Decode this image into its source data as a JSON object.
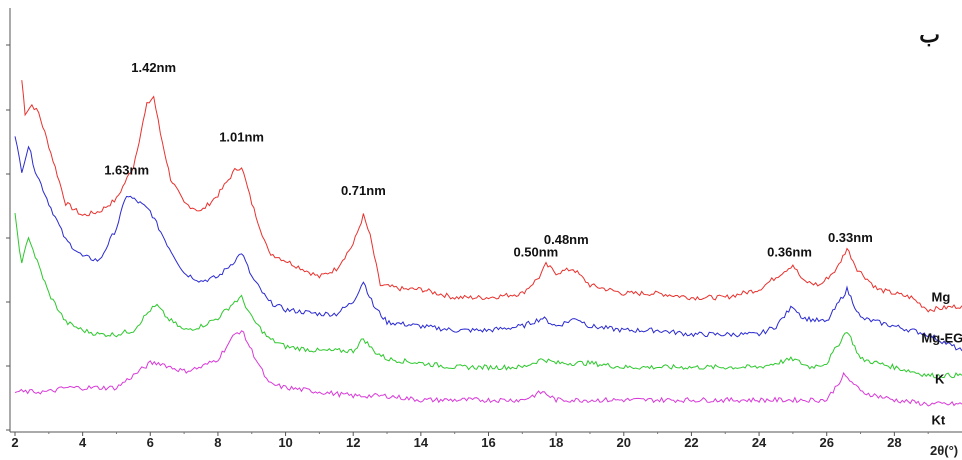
{
  "chart_data": {
    "type": "line",
    "panel_label": "ب",
    "xlabel": "2θ(°)",
    "ylabel": "",
    "xlim": [
      2,
      30
    ],
    "ylim": [
      0,
      100
    ],
    "y_ticks_labeled": false,
    "x_ticks": [
      2,
      4,
      6,
      8,
      10,
      12,
      14,
      16,
      18,
      20,
      22,
      24,
      26,
      28
    ],
    "x_tick_labels": [
      "2",
      "4",
      "6",
      "8",
      "10",
      "12",
      "14",
      "16",
      "18",
      "20",
      "22",
      "24",
      "26",
      "28"
    ],
    "grid": false,
    "legend": "inline-right",
    "series": [
      {
        "name": "Mg",
        "color": "#e8322e",
        "points": [
          [
            2.2,
            78
          ],
          [
            2.3,
            70
          ],
          [
            2.5,
            72
          ],
          [
            2.7,
            70
          ],
          [
            3.0,
            62
          ],
          [
            3.5,
            48
          ],
          [
            4.0,
            45
          ],
          [
            4.5,
            46
          ],
          [
            5.0,
            49
          ],
          [
            5.5,
            57
          ],
          [
            5.9,
            72
          ],
          [
            6.1,
            74
          ],
          [
            6.3,
            65
          ],
          [
            6.6,
            54
          ],
          [
            7.0,
            48
          ],
          [
            7.5,
            46
          ],
          [
            8.0,
            50
          ],
          [
            8.5,
            56
          ],
          [
            8.7,
            57
          ],
          [
            9.0,
            48
          ],
          [
            9.5,
            36
          ],
          [
            10.0,
            34
          ],
          [
            10.5,
            32
          ],
          [
            11.0,
            30
          ],
          [
            11.5,
            32
          ],
          [
            12.0,
            38
          ],
          [
            12.3,
            45
          ],
          [
            12.5,
            40
          ],
          [
            12.8,
            28
          ],
          [
            13.5,
            27
          ],
          [
            14.0,
            27
          ],
          [
            15.0,
            25
          ],
          [
            16.0,
            25
          ],
          [
            17.0,
            26
          ],
          [
            17.5,
            30
          ],
          [
            17.7,
            33
          ],
          [
            18.0,
            31
          ],
          [
            18.5,
            32
          ],
          [
            19.0,
            28
          ],
          [
            20.0,
            26
          ],
          [
            21.0,
            26
          ],
          [
            22.0,
            25
          ],
          [
            23.0,
            25
          ],
          [
            24.0,
            27
          ],
          [
            24.5,
            30
          ],
          [
            25.0,
            33
          ],
          [
            25.3,
            29
          ],
          [
            25.8,
            28
          ],
          [
            26.3,
            32
          ],
          [
            26.6,
            37
          ],
          [
            26.9,
            32
          ],
          [
            27.5,
            27
          ],
          [
            28.5,
            25
          ],
          [
            29.0,
            22
          ],
          [
            30.0,
            23
          ]
        ]
      },
      {
        "name": "Mg-EG",
        "color": "#2b2bd0",
        "points": [
          [
            2.0,
            64
          ],
          [
            2.2,
            56
          ],
          [
            2.4,
            62
          ],
          [
            2.6,
            56
          ],
          [
            3.0,
            48
          ],
          [
            3.5,
            39
          ],
          [
            4.0,
            35
          ],
          [
            4.5,
            34
          ],
          [
            5.0,
            42
          ],
          [
            5.3,
            50
          ],
          [
            5.7,
            48
          ],
          [
            6.0,
            46
          ],
          [
            6.5,
            38
          ],
          [
            7.0,
            31
          ],
          [
            7.5,
            29
          ],
          [
            8.0,
            30
          ],
          [
            8.5,
            34
          ],
          [
            8.7,
            36
          ],
          [
            9.0,
            30
          ],
          [
            9.5,
            24
          ],
          [
            10.0,
            22
          ],
          [
            11.0,
            21
          ],
          [
            11.5,
            21
          ],
          [
            12.0,
            24
          ],
          [
            12.3,
            29
          ],
          [
            12.6,
            23
          ],
          [
            13.0,
            19
          ],
          [
            14.0,
            18
          ],
          [
            15.0,
            17
          ],
          [
            16.0,
            17
          ],
          [
            17.0,
            18
          ],
          [
            17.6,
            20
          ],
          [
            18.0,
            18
          ],
          [
            18.6,
            20
          ],
          [
            19.0,
            18
          ],
          [
            20.0,
            17
          ],
          [
            21.0,
            17
          ],
          [
            22.0,
            16
          ],
          [
            23.0,
            16
          ],
          [
            24.0,
            16
          ],
          [
            24.5,
            18
          ],
          [
            25.0,
            23
          ],
          [
            25.3,
            20
          ],
          [
            26.0,
            19
          ],
          [
            26.6,
            27
          ],
          [
            27.0,
            20
          ],
          [
            27.5,
            19
          ],
          [
            28.0,
            18
          ],
          [
            29.0,
            16
          ],
          [
            30.0,
            12
          ]
        ]
      },
      {
        "name": "K",
        "color": "#2ec82e",
        "points": [
          [
            2.0,
            45
          ],
          [
            2.2,
            33
          ],
          [
            2.4,
            40
          ],
          [
            2.6,
            35
          ],
          [
            3.0,
            26
          ],
          [
            3.5,
            19
          ],
          [
            4.0,
            17
          ],
          [
            4.5,
            16
          ],
          [
            5.0,
            16
          ],
          [
            5.5,
            17
          ],
          [
            6.0,
            22
          ],
          [
            6.2,
            23
          ],
          [
            6.5,
            20
          ],
          [
            7.0,
            17
          ],
          [
            7.5,
            18
          ],
          [
            8.0,
            20
          ],
          [
            8.5,
            24
          ],
          [
            8.7,
            25
          ],
          [
            9.0,
            20
          ],
          [
            9.5,
            15
          ],
          [
            10.0,
            13
          ],
          [
            11.0,
            12
          ],
          [
            12.0,
            12
          ],
          [
            12.3,
            15
          ],
          [
            12.6,
            12
          ],
          [
            13.0,
            10
          ],
          [
            14.0,
            9
          ],
          [
            15.0,
            8
          ],
          [
            16.0,
            8
          ],
          [
            17.0,
            8
          ],
          [
            17.6,
            10
          ],
          [
            18.0,
            9
          ],
          [
            19.0,
            9
          ],
          [
            20.0,
            8
          ],
          [
            21.0,
            8
          ],
          [
            22.0,
            8
          ],
          [
            23.0,
            8
          ],
          [
            24.0,
            8
          ],
          [
            25.0,
            10
          ],
          [
            25.5,
            8
          ],
          [
            26.0,
            9
          ],
          [
            26.6,
            17
          ],
          [
            27.0,
            10
          ],
          [
            28.0,
            8
          ],
          [
            29.0,
            6
          ],
          [
            30.0,
            6
          ]
        ]
      },
      {
        "name": "Kt",
        "color": "#d83ad8",
        "points": [
          [
            2.0,
            2
          ],
          [
            2.5,
            2
          ],
          [
            3.0,
            2
          ],
          [
            3.5,
            3
          ],
          [
            4.0,
            3
          ],
          [
            4.5,
            3
          ],
          [
            5.0,
            3
          ],
          [
            5.5,
            6
          ],
          [
            6.0,
            9
          ],
          [
            6.3,
            9
          ],
          [
            6.6,
            8
          ],
          [
            7.0,
            7
          ],
          [
            7.5,
            8
          ],
          [
            8.0,
            10
          ],
          [
            8.5,
            16
          ],
          [
            8.7,
            17
          ],
          [
            9.0,
            12
          ],
          [
            9.5,
            4
          ],
          [
            10.0,
            3
          ],
          [
            11.0,
            2
          ],
          [
            12.0,
            1
          ],
          [
            13.0,
            1
          ],
          [
            14.0,
            0
          ],
          [
            15.0,
            0
          ],
          [
            16.0,
            0
          ],
          [
            17.0,
            0
          ],
          [
            17.6,
            2
          ],
          [
            18.0,
            0
          ],
          [
            19.0,
            0
          ],
          [
            20.0,
            0
          ],
          [
            21.0,
            0
          ],
          [
            22.0,
            0
          ],
          [
            23.0,
            0
          ],
          [
            24.0,
            0
          ],
          [
            25.0,
            0
          ],
          [
            26.0,
            0
          ],
          [
            26.5,
            6
          ],
          [
            26.8,
            4
          ],
          [
            27.0,
            2
          ],
          [
            28.0,
            0
          ],
          [
            29.0,
            -1
          ],
          [
            30.0,
            -1
          ]
        ]
      }
    ],
    "annotations": [
      {
        "text": "1.42nm",
        "x": 6.1,
        "y": 80
      },
      {
        "text": "1.01nm",
        "x": 8.7,
        "y": 63
      },
      {
        "text": "1.63nm",
        "x": 5.3,
        "y": 55
      },
      {
        "text": "0.71nm",
        "x": 12.3,
        "y": 50
      },
      {
        "text": "0.48nm",
        "x": 18.3,
        "y": 38
      },
      {
        "text": "0.50nm",
        "x": 17.4,
        "y": 35
      },
      {
        "text": "0.36nm",
        "x": 24.9,
        "y": 35
      },
      {
        "text": "0.33nm",
        "x": 26.7,
        "y": 38.5
      }
    ],
    "series_labels": [
      {
        "text": "Mg",
        "x": 29.1,
        "y": 24
      },
      {
        "text": "Mg-EG",
        "x": 28.8,
        "y": 14
      },
      {
        "text": "K",
        "x": 29.2,
        "y": 4
      },
      {
        "text": "Kt",
        "x": 29.1,
        "y": -6
      }
    ]
  }
}
